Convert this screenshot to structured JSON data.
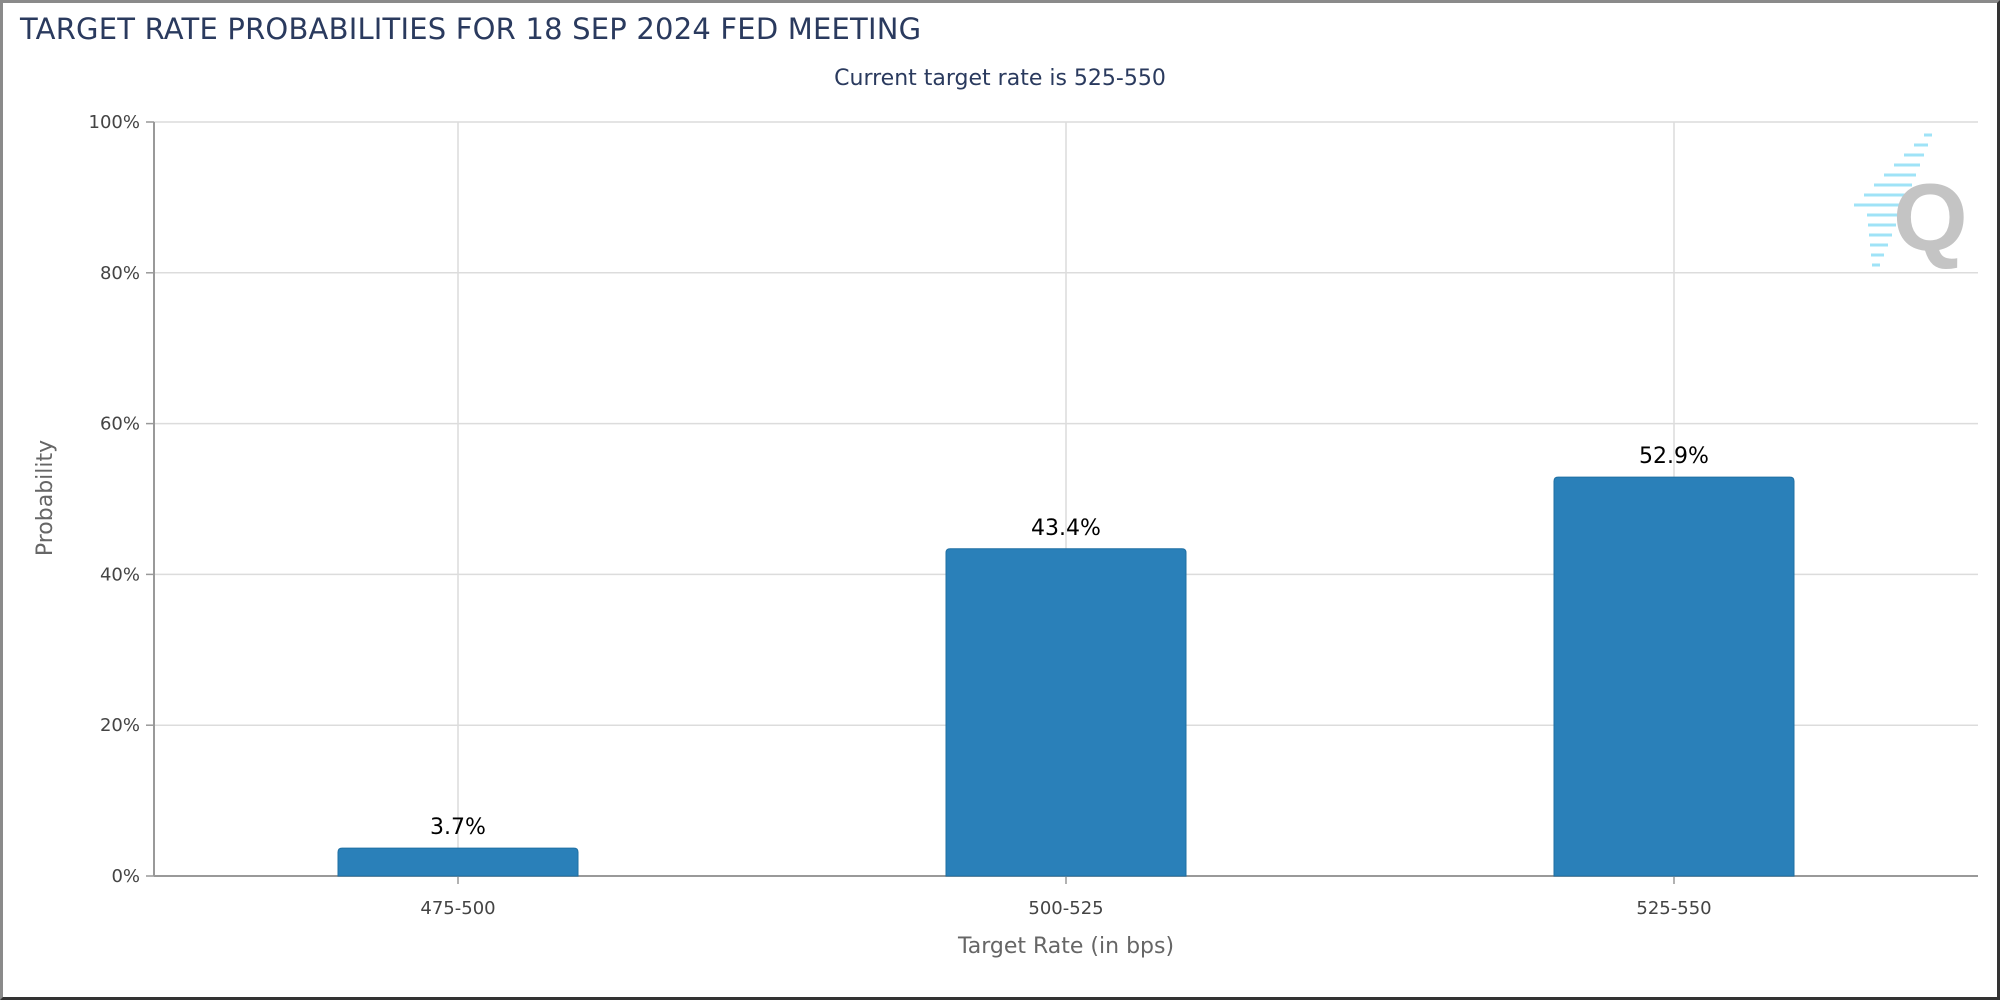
{
  "chart_data": {
    "type": "bar",
    "title": "TARGET RATE PROBABILITIES FOR 18 SEP 2024 FED MEETING",
    "subtitle": "Current target rate is 525-550",
    "categories": [
      "475-500",
      "500-525",
      "525-550"
    ],
    "values": [
      3.7,
      43.4,
      52.9
    ],
    "data_labels": [
      "3.7%",
      "43.4%",
      "52.9%"
    ],
    "xlabel": "Target Rate (in bps)",
    "ylabel": "Probability",
    "ylim": [
      0,
      100
    ],
    "yticks": [
      0,
      20,
      40,
      60,
      80,
      100
    ],
    "ytick_labels": [
      "0%",
      "20%",
      "40%",
      "60%",
      "80%",
      "100%"
    ],
    "grid": true,
    "legend": "none",
    "bar_color": "#2a80b9"
  }
}
